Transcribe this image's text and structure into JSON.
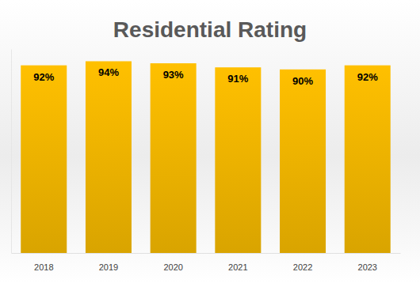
{
  "chart_data": {
    "type": "bar",
    "title": "Residential Rating",
    "categories": [
      "2018",
      "2019",
      "2020",
      "2021",
      "2022",
      "2023"
    ],
    "values": [
      92,
      94,
      93,
      91,
      90,
      92
    ],
    "value_labels": [
      "92%",
      "94%",
      "93%",
      "91%",
      "90%",
      "92%"
    ],
    "color": "#ffc000",
    "ylim": [
      0,
      100
    ],
    "data_labels": true,
    "tick_labels": "x",
    "grid": false
  }
}
